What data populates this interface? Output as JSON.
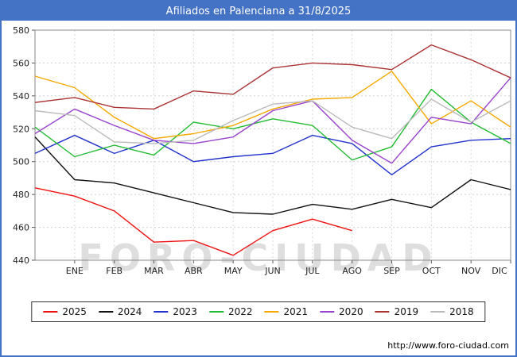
{
  "header": {
    "title": "Afiliados en Palenciana a 31/8/2025"
  },
  "watermark": {
    "text": "FORO-CIUDAD"
  },
  "footer": {
    "url": "http://www.foro-ciudad.com"
  },
  "accent_color": "#4472c4",
  "chart_data": {
    "type": "line",
    "title": "Afiliados en Palenciana a 31/8/2025",
    "x_labels": [
      "ENE",
      "FEB",
      "MAR",
      "ABR",
      "MAY",
      "JUN",
      "JUL",
      "AGO",
      "SEP",
      "OCT",
      "NOV",
      "DIC"
    ],
    "layout_note": "each series starts at the left axis one slot before the ENE label; 13 point slots total",
    "ylim": [
      440,
      580
    ],
    "y_ticks": [
      440,
      460,
      480,
      500,
      520,
      540,
      560,
      580
    ],
    "grid": true,
    "legend_position": "bottom",
    "series": [
      {
        "name": "2025",
        "color": "#ee1111",
        "values": [
          484,
          479,
          470,
          451,
          452,
          443,
          458,
          465,
          458
        ]
      },
      {
        "name": "2024",
        "color": "#111111",
        "values": [
          515,
          489,
          487,
          481,
          475,
          469,
          468,
          474,
          471,
          477,
          472,
          489,
          483
        ]
      },
      {
        "name": "2023",
        "color": "#2233cc",
        "values": [
          505,
          516,
          505,
          513,
          500,
          503,
          505,
          516,
          511,
          492,
          509,
          513,
          514
        ]
      },
      {
        "name": "2022",
        "color": "#22bb33",
        "values": [
          521,
          503,
          510,
          504,
          524,
          520,
          526,
          522,
          501,
          509,
          544,
          524,
          511
        ]
      },
      {
        "name": "2021",
        "color": "#f5a800",
        "values": [
          552,
          545,
          527,
          514,
          517,
          522,
          532,
          538,
          539,
          555,
          523,
          537,
          521
        ]
      },
      {
        "name": "2020",
        "color": "#9944cc",
        "values": [
          517,
          532,
          522,
          513,
          511,
          515,
          531,
          537,
          513,
          499,
          527,
          523,
          551
        ]
      },
      {
        "name": "2019",
        "color": "#aa3333",
        "values": [
          536,
          539,
          533,
          532,
          543,
          541,
          557,
          560,
          559,
          556,
          571,
          562,
          551
        ]
      },
      {
        "name": "2018",
        "color": "#bbbbbb",
        "values": [
          531,
          528,
          512,
          511,
          513,
          525,
          535,
          537,
          521,
          514,
          538,
          524,
          537
        ]
      }
    ]
  }
}
